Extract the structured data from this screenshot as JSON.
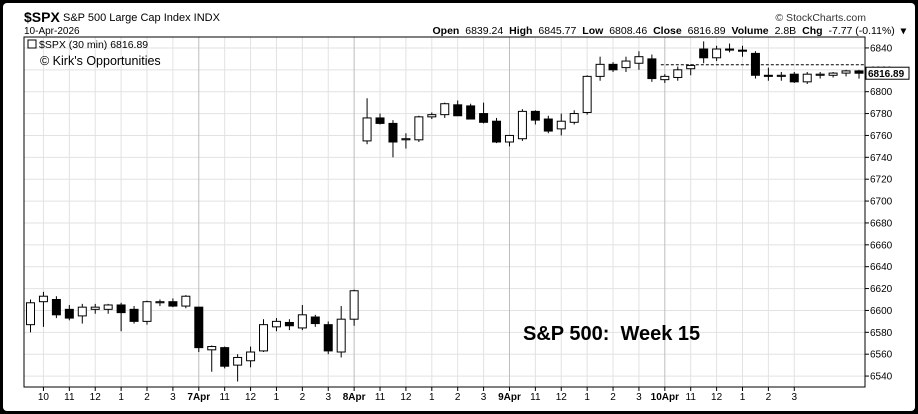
{
  "header": {
    "symbol": "$SPX",
    "index_name": "S&P 500 Large Cap Index INDX",
    "date": "10-Apr-2026",
    "copyright": "© StockCharts.com",
    "open_label": "Open",
    "open": "6839.24",
    "high_label": "High",
    "high": "6845.77",
    "low_label": "Low",
    "low": "6808.46",
    "close_label": "Close",
    "close": "6816.89",
    "volume_label": "Volume",
    "volume": "2.8B",
    "chg_label": "Chg",
    "chg": "-7.77 (-0.11%)"
  },
  "legend": {
    "text": "$SPX (30 min) 6816.89"
  },
  "watermark": "© Kirk's Opportunities",
  "annotation": "S&P 500:  Week 15",
  "price_tag": "6816.89",
  "chart_data": {
    "type": "candlestick",
    "interval": "30 min",
    "ylim": [
      6530,
      6850
    ],
    "y_ticks": [
      6540,
      6560,
      6580,
      6600,
      6620,
      6640,
      6660,
      6680,
      6700,
      6720,
      6740,
      6760,
      6780,
      6800,
      6820,
      6840
    ],
    "x_ticks": [
      {
        "i": 1,
        "label": "10"
      },
      {
        "i": 3,
        "label": "11"
      },
      {
        "i": 5,
        "label": "12"
      },
      {
        "i": 7,
        "label": "1"
      },
      {
        "i": 9,
        "label": "2"
      },
      {
        "i": 11,
        "label": "3"
      },
      {
        "i": 13,
        "label": "7Apr"
      },
      {
        "i": 15,
        "label": "11"
      },
      {
        "i": 17,
        "label": "12"
      },
      {
        "i": 19,
        "label": "1"
      },
      {
        "i": 21,
        "label": "2"
      },
      {
        "i": 23,
        "label": "3"
      },
      {
        "i": 25,
        "label": "8Apr"
      },
      {
        "i": 27,
        "label": "11"
      },
      {
        "i": 29,
        "label": "12"
      },
      {
        "i": 31,
        "label": "1"
      },
      {
        "i": 33,
        "label": "2"
      },
      {
        "i": 35,
        "label": "3"
      },
      {
        "i": 37,
        "label": "9Apr"
      },
      {
        "i": 39,
        "label": "11"
      },
      {
        "i": 41,
        "label": "12"
      },
      {
        "i": 43,
        "label": "1"
      },
      {
        "i": 45,
        "label": "2"
      },
      {
        "i": 47,
        "label": "3"
      },
      {
        "i": 49,
        "label": "10Apr"
      },
      {
        "i": 51,
        "label": "11"
      },
      {
        "i": 53,
        "label": "12"
      },
      {
        "i": 55,
        "label": "1"
      },
      {
        "i": 57,
        "label": "2"
      },
      {
        "i": 59,
        "label": "3"
      }
    ],
    "day_starts": [
      13,
      25,
      37,
      49
    ],
    "candles": [
      {
        "o": 6587,
        "h": 6610,
        "l": 6580,
        "c": 6607
      },
      {
        "o": 6608,
        "h": 6617,
        "l": 6585,
        "c": 6613
      },
      {
        "o": 6610,
        "h": 6613,
        "l": 6593,
        "c": 6596
      },
      {
        "o": 6601,
        "h": 6605,
        "l": 6591,
        "c": 6593
      },
      {
        "o": 6595,
        "h": 6606,
        "l": 6588,
        "c": 6603
      },
      {
        "o": 6601,
        "h": 6606,
        "l": 6597,
        "c": 6603
      },
      {
        "o": 6601,
        "h": 6606,
        "l": 6597,
        "c": 6605
      },
      {
        "o": 6605,
        "h": 6607,
        "l": 6581,
        "c": 6598
      },
      {
        "o": 6601,
        "h": 6604,
        "l": 6588,
        "c": 6590
      },
      {
        "o": 6590,
        "h": 6609,
        "l": 6587,
        "c": 6608
      },
      {
        "o": 6607,
        "h": 6610,
        "l": 6604,
        "c": 6608
      },
      {
        "o": 6608,
        "h": 6611,
        "l": 6603,
        "c": 6604
      },
      {
        "o": 6604,
        "h": 6614,
        "l": 6602,
        "c": 6613
      },
      {
        "o": 6603,
        "h": 6603,
        "l": 6562,
        "c": 6566
      },
      {
        "o": 6564,
        "h": 6568,
        "l": 6544,
        "c": 6567
      },
      {
        "o": 6566,
        "h": 6567,
        "l": 6547,
        "c": 6549
      },
      {
        "o": 6550,
        "h": 6560,
        "l": 6535,
        "c": 6557
      },
      {
        "o": 6554,
        "h": 6567,
        "l": 6548,
        "c": 6562
      },
      {
        "o": 6563,
        "h": 6592,
        "l": 6562,
        "c": 6587
      },
      {
        "o": 6585,
        "h": 6593,
        "l": 6581,
        "c": 6590
      },
      {
        "o": 6589,
        "h": 6592,
        "l": 6582,
        "c": 6586
      },
      {
        "o": 6584,
        "h": 6605,
        "l": 6582,
        "c": 6596
      },
      {
        "o": 6594,
        "h": 6596,
        "l": 6585,
        "c": 6588
      },
      {
        "o": 6587,
        "h": 6590,
        "l": 6560,
        "c": 6563
      },
      {
        "o": 6562,
        "h": 6604,
        "l": 6557,
        "c": 6592
      },
      {
        "o": 6592,
        "h": 6619,
        "l": 6586,
        "c": 6618
      },
      {
        "o": 6755,
        "h": 6794,
        "l": 6752,
        "c": 6776
      },
      {
        "o": 6776,
        "h": 6780,
        "l": 6770,
        "c": 6771
      },
      {
        "o": 6771,
        "h": 6774,
        "l": 6740,
        "c": 6754
      },
      {
        "o": 6756,
        "h": 6762,
        "l": 6748,
        "c": 6757
      },
      {
        "o": 6756,
        "h": 6778,
        "l": 6754,
        "c": 6777
      },
      {
        "o": 6777,
        "h": 6781,
        "l": 6775,
        "c": 6779
      },
      {
        "o": 6779,
        "h": 6790,
        "l": 6776,
        "c": 6789
      },
      {
        "o": 6788,
        "h": 6792,
        "l": 6778,
        "c": 6778
      },
      {
        "o": 6787,
        "h": 6789,
        "l": 6775,
        "c": 6775
      },
      {
        "o": 6780,
        "h": 6790,
        "l": 6771,
        "c": 6772
      },
      {
        "o": 6773,
        "h": 6776,
        "l": 6753,
        "c": 6754
      },
      {
        "o": 6754,
        "h": 6760,
        "l": 6750,
        "c": 6760
      },
      {
        "o": 6757,
        "h": 6784,
        "l": 6755,
        "c": 6782
      },
      {
        "o": 6782,
        "h": 6783,
        "l": 6770,
        "c": 6774
      },
      {
        "o": 6775,
        "h": 6778,
        "l": 6762,
        "c": 6764
      },
      {
        "o": 6766,
        "h": 6780,
        "l": 6760,
        "c": 6773
      },
      {
        "o": 6772,
        "h": 6783,
        "l": 6770,
        "c": 6780
      },
      {
        "o": 6781,
        "h": 6815,
        "l": 6779,
        "c": 6814
      },
      {
        "o": 6814,
        "h": 6832,
        "l": 6810,
        "c": 6825
      },
      {
        "o": 6825,
        "h": 6827,
        "l": 6818,
        "c": 6820
      },
      {
        "o": 6822,
        "h": 6832,
        "l": 6818,
        "c": 6828
      },
      {
        "o": 6826,
        "h": 6837,
        "l": 6820,
        "c": 6832
      },
      {
        "o": 6830,
        "h": 6834,
        "l": 6809,
        "c": 6812
      },
      {
        "o": 6811,
        "h": 6816,
        "l": 6808,
        "c": 6814
      },
      {
        "o": 6813,
        "h": 6823,
        "l": 6810,
        "c": 6820
      },
      {
        "o": 6821,
        "h": 6825,
        "l": 6815,
        "c": 6824
      },
      {
        "o": 6839,
        "h": 6846,
        "l": 6826,
        "c": 6831
      },
      {
        "o": 6831,
        "h": 6842,
        "l": 6828,
        "c": 6839
      },
      {
        "o": 6839,
        "h": 6844,
        "l": 6836,
        "c": 6838
      },
      {
        "o": 6838,
        "h": 6842,
        "l": 6832,
        "c": 6837
      },
      {
        "o": 6835,
        "h": 6837,
        "l": 6812,
        "c": 6815
      },
      {
        "o": 6815,
        "h": 6822,
        "l": 6810,
        "c": 6814
      },
      {
        "o": 6814,
        "h": 6818,
        "l": 6810,
        "c": 6815
      },
      {
        "o": 6816,
        "h": 6818,
        "l": 6808,
        "c": 6809
      },
      {
        "o": 6809,
        "h": 6818,
        "l": 6807,
        "c": 6816
      },
      {
        "o": 6815,
        "h": 6818,
        "l": 6812,
        "c": 6816
      },
      {
        "o": 6815,
        "h": 6818,
        "l": 6813,
        "c": 6817
      },
      {
        "o": 6817,
        "h": 6820,
        "l": 6814,
        "c": 6819
      },
      {
        "o": 6819,
        "h": 6820,
        "l": 6812,
        "c": 6816.89
      }
    ],
    "reference_line": 6824.66,
    "last_price": 6816.89
  }
}
